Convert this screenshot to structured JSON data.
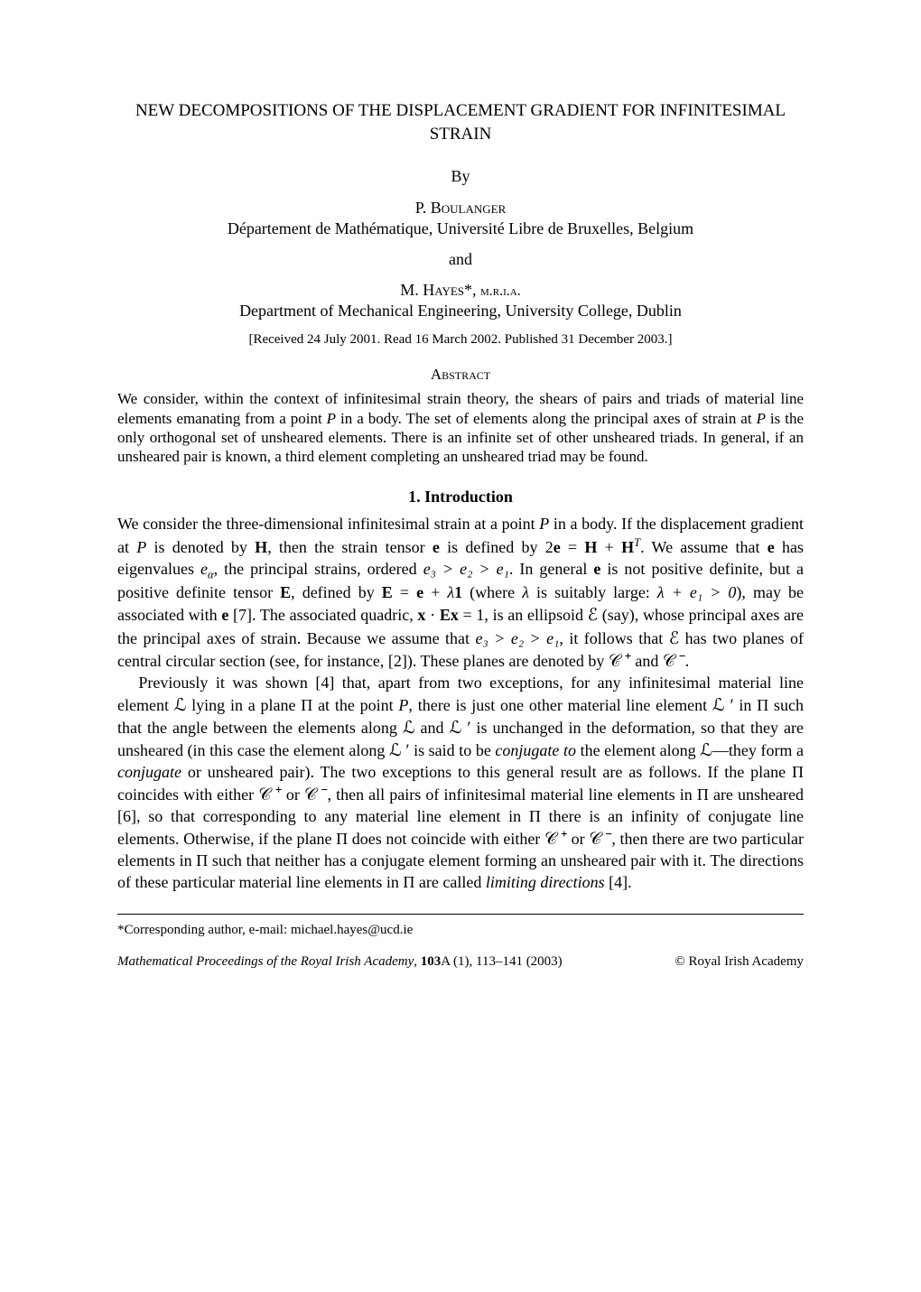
{
  "title": "NEW DECOMPOSITIONS OF THE DISPLACEMENT GRADIENT FOR INFINITESIMAL STRAIN",
  "by": "By",
  "author1_initial": "P. ",
  "author1_surname": "Boulanger",
  "affiliation1": "Département de Mathématique, Université Libre de Bruxelles, Belgium",
  "and": "and",
  "author2_initial": "M. ",
  "author2_surname": "Hayes",
  "author2_suffix": "*, ",
  "author2_honorific": "m.r.i.a.",
  "affiliation2": "Department of Mechanical Engineering, University College, Dublin",
  "received": "[Received 24 July 2001. Read 16 March 2002. Published 31 December 2003.]",
  "abstract_label": "Abstract",
  "abstract_text_1": "We consider, within the context of infinitesimal strain theory, the shears of pairs and triads of material line elements emanating from a point ",
  "abstract_text_2": " in a body. The set of elements along the principal axes of strain at ",
  "abstract_text_3": " is the only orthogonal set of unsheared elements. There is an infinite set of other unsheared triads. In general, if an unsheared pair is known, a third element completing an unsheared triad may be found.",
  "section1_heading": "1. Introduction",
  "intro": {
    "p1a": "We consider the three-dimensional infinitesimal strain at a point ",
    "p1b": " in a body. If the displacement gradient at ",
    "p1c": " is denoted by ",
    "p1d": ", then the strain tensor ",
    "p1e": " is defined by 2",
    "p1f": ". We assume that ",
    "p1g": " has eigenvalues ",
    "p1h": ", the principal strains, ordered ",
    "p1i": ". In general ",
    "p1j": " is not positive definite, but a positive definite tensor ",
    "p1k": ", defined by ",
    "p1l": " (where ",
    "p1m": " is suitably large: ",
    "p1n": "), may be associated with ",
    "p1o": " [7]. The associated quadric, ",
    "p1p": ", is an ellipsoid ",
    "p1q": " (say), whose principal axes are the principal axes of strain. Because we assume that ",
    "p1r": ", it follows that ",
    "p1s": " has two planes of central circular section (see, for instance, [2]). These planes are denoted by ",
    "p1t": " and ",
    "p1u": ".",
    "p2a": "Previously it was shown [4] that, apart from two exceptions, for any infinitesimal material line element ",
    "p2b": " lying in a plane Π at the point ",
    "p2c": ", there is just one other material line element ",
    "p2d": " in Π such that the angle between the elements along ",
    "p2e": " and ",
    "p2f": " is unchanged in the deformation, so that they are unsheared (in this case the element along ",
    "p2g": " is said to be ",
    "p2h": "conjugate to",
    "p2i": " the element along ",
    "p2j": "—they form a ",
    "p2k": "conjugate",
    "p2l": " or unsheared pair). The two exceptions to this general result are as follows. If the plane Π coincides with either ",
    "p2m": " or ",
    "p2n": ", then all pairs of infinitesimal material line elements in Π are unsheared [6], so that corresponding to any material line element in Π there is an infinity of conjugate line elements. Otherwise, if the plane Π does not coincide with either ",
    "p2o": " or ",
    "p2p": ", then there are two particular elements in Π such that neither has a conjugate element forming an unsheared pair with it. The directions of these particular material line elements in Π are called ",
    "p2q": "limiting directions",
    "p2r": " [4]."
  },
  "math": {
    "P": "P",
    "H": "H",
    "e": "e",
    "E": "E",
    "x": "x",
    "one": "1",
    "lambda": "λ",
    "eq1": " = ",
    "plus": " + ",
    "HT_sup": "T",
    "e_alpha": "e",
    "alpha": "α",
    "order1": "e₃ > e₂ > e₁",
    "Eeq": "E = e + λ1",
    "lambdae1": "λ + e₁ > 0",
    "xEx": "x · Ex = 1",
    "scrE": "ℰ",
    "scrCplus": "𝒞 ⁺",
    "scrCminus": "𝒞 ⁻",
    "scrL": "ℒ",
    "scrLprime": "ℒ ′"
  },
  "footnote": "*Corresponding author, e-mail: michael.hayes@ucd.ie",
  "footer_left_ital": "Mathematical Proceedings of the Royal Irish Academy",
  "footer_left_rest": ", 103A (1), 113–141 (2003)",
  "footer_vol_bold": "103",
  "footer_right": "© Royal Irish Academy"
}
